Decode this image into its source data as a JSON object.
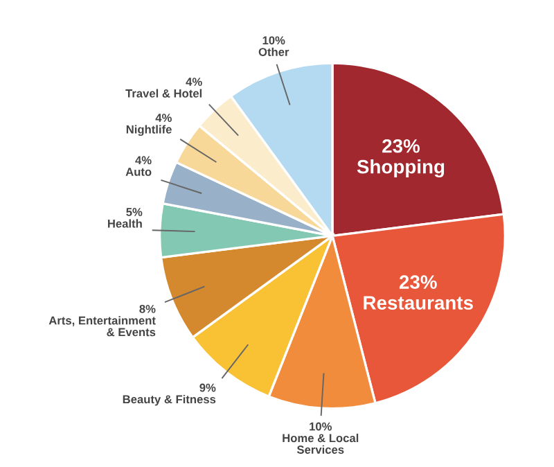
{
  "chart_data": {
    "type": "pie",
    "categories": [
      "Shopping",
      "Restaurants",
      "Home & Local\nServices",
      "Beauty & Fitness",
      "Arts, Entertainment\n& Events",
      "Health",
      "Auto",
      "Nightlife",
      "Travel & Hotel",
      "Other"
    ],
    "values": [
      23,
      23,
      10,
      9,
      8,
      5,
      4,
      4,
      4,
      10
    ],
    "colors": [
      "#a0282e",
      "#e8573a",
      "#f08c3c",
      "#f8c234",
      "#d4892e",
      "#82c8b2",
      "#98b0c8",
      "#f8d898",
      "#fbedcc",
      "#b4daf2"
    ],
    "value_labels": [
      "23%",
      "23%",
      "10%",
      "9%",
      "8%",
      "5%",
      "4%",
      "4%",
      "4%",
      "10%"
    ],
    "legend": false
  }
}
